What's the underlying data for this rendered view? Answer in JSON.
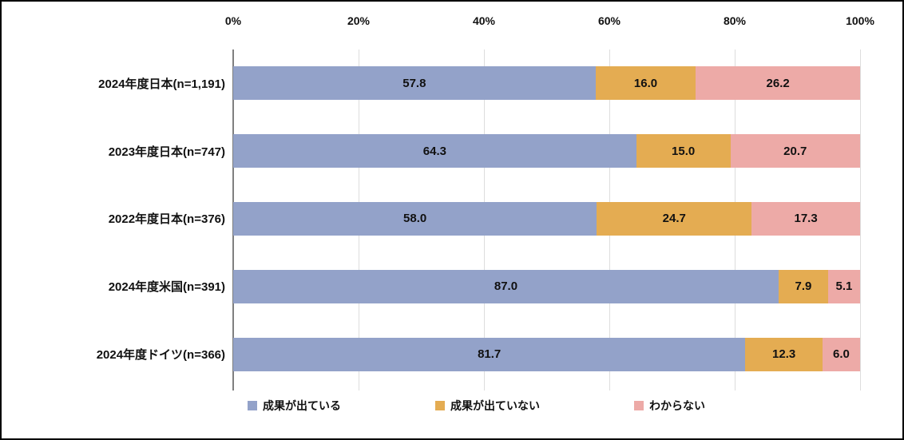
{
  "chart_data": {
    "type": "bar",
    "orientation": "horizontal",
    "stacked": true,
    "title": "",
    "categories": [
      "2024年度日本(n=1,191)",
      "2023年度日本(n=747)",
      "2022年度日本(n=376)",
      "2024年度米国(n=391)",
      "2024年度ドイツ(n=366)"
    ],
    "series": [
      {
        "name": "成果が出ている",
        "color": "#93a2c9",
        "values": [
          57.8,
          64.3,
          58.0,
          87.0,
          81.7
        ]
      },
      {
        "name": "成果が出ていない",
        "color": "#e4ac52",
        "values": [
          16.0,
          15.0,
          24.7,
          7.9,
          12.3
        ]
      },
      {
        "name": "わからない",
        "color": "#edaaa7",
        "values": [
          26.2,
          20.7,
          17.3,
          5.1,
          6.0
        ]
      }
    ],
    "x_axis": {
      "ticks": [
        "0%",
        "20%",
        "40%",
        "60%",
        "80%",
        "100%"
      ],
      "min": 0,
      "max": 100,
      "unit": "%"
    },
    "value_label_decimals": 1,
    "grid": true,
    "legend_position": "bottom",
    "colors": {
      "gridline": "#dddddd",
      "axis_line": "#7f7f7f",
      "text": "#111111",
      "background": "#ffffff",
      "border": "#000000"
    }
  }
}
